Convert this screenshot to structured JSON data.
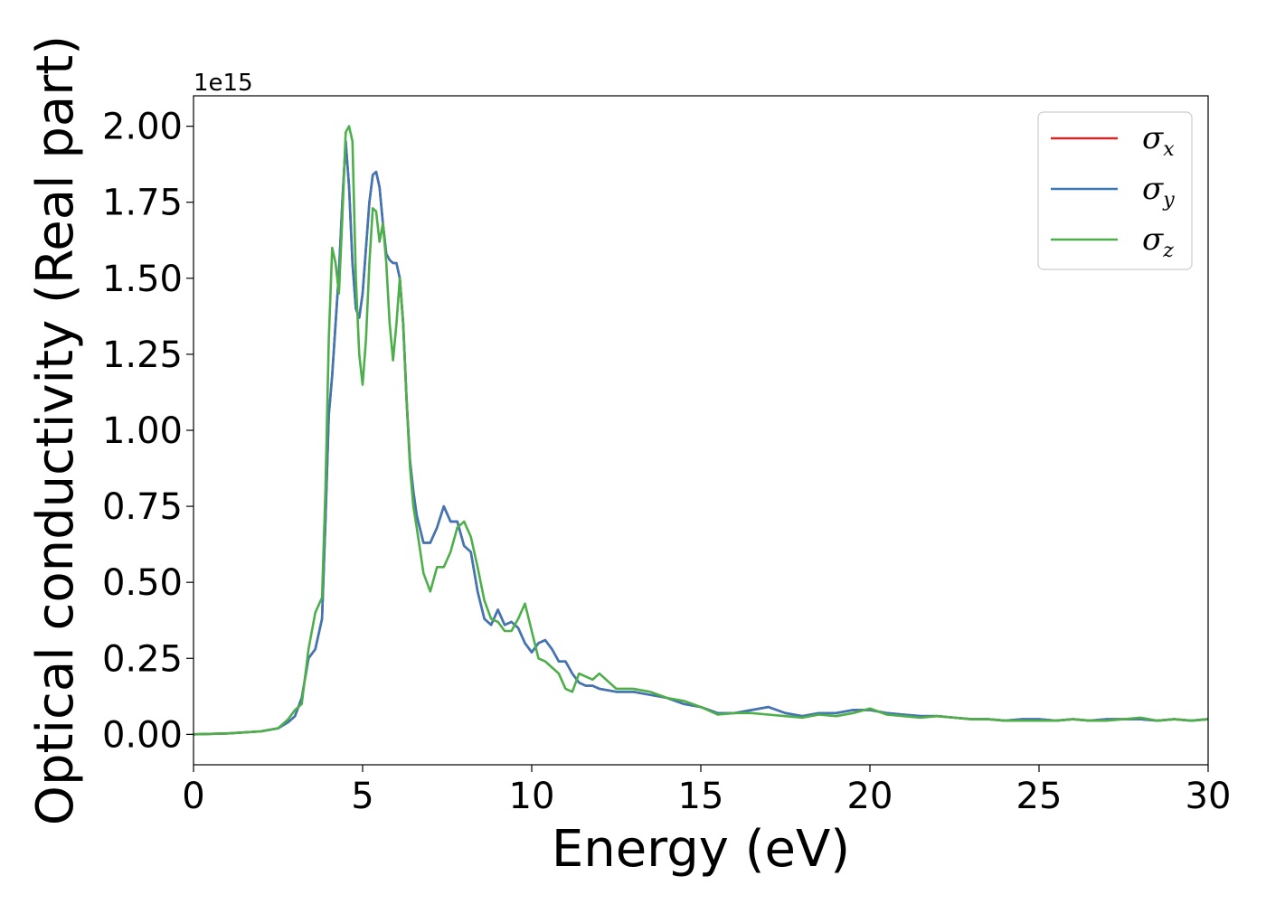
{
  "chart_data": {
    "type": "line",
    "xlabel": "Energy (eV)",
    "ylabel": "Optical conductivity (Real part)",
    "y_offset_label": "1e15",
    "xlim": [
      0,
      30
    ],
    "ylim": [
      -0.1,
      2.1
    ],
    "xticks": [
      0,
      5,
      10,
      15,
      20,
      25,
      30
    ],
    "xtick_labels": [
      "0",
      "5",
      "10",
      "15",
      "20",
      "25",
      "30"
    ],
    "yticks": [
      0.0,
      0.25,
      0.5,
      0.75,
      1.0,
      1.25,
      1.5,
      1.75,
      2.0
    ],
    "ytick_labels": [
      "0.00",
      "0.25",
      "0.50",
      "0.75",
      "1.00",
      "1.25",
      "1.50",
      "1.75",
      "2.00"
    ],
    "grid": false,
    "legend_position": "top-right",
    "series": [
      {
        "name": "σx",
        "name_base": "σ",
        "name_sub": "x",
        "color": "#d62728",
        "x": [
          0,
          1,
          2,
          2.5,
          2.8,
          3.0,
          3.2,
          3.4,
          3.6,
          3.8,
          3.9,
          4.0,
          4.1,
          4.2,
          4.3,
          4.4,
          4.5,
          4.6,
          4.7,
          4.8,
          4.9,
          5.0,
          5.1,
          5.2,
          5.3,
          5.4,
          5.5,
          5.6,
          5.7,
          5.8,
          5.9,
          6.0,
          6.1,
          6.2,
          6.3,
          6.4,
          6.5,
          6.6,
          6.8,
          7.0,
          7.2,
          7.4,
          7.6,
          7.8,
          8.0,
          8.2,
          8.4,
          8.6,
          8.8,
          9.0,
          9.2,
          9.4,
          9.6,
          9.8,
          10.0,
          10.2,
          10.4,
          10.6,
          10.8,
          11.0,
          11.2,
          11.4,
          11.6,
          11.8,
          12.0,
          12.5,
          13.0,
          13.5,
          14.0,
          14.5,
          15.0,
          15.5,
          16.0,
          16.5,
          17.0,
          17.5,
          18.0,
          18.5,
          19.0,
          19.5,
          20.0,
          20.5,
          21.0,
          21.5,
          22.0,
          22.5,
          23.0,
          23.5,
          24.0,
          24.5,
          25.0,
          25.5,
          26.0,
          26.5,
          27.0,
          27.5,
          28.0,
          28.5,
          29.0,
          29.5,
          30.0
        ],
        "y": [
          0.0,
          0.003,
          0.01,
          0.02,
          0.04,
          0.06,
          0.12,
          0.25,
          0.28,
          0.38,
          0.7,
          1.05,
          1.18,
          1.35,
          1.52,
          1.75,
          1.95,
          1.8,
          1.55,
          1.4,
          1.37,
          1.45,
          1.6,
          1.75,
          1.84,
          1.85,
          1.8,
          1.68,
          1.58,
          1.56,
          1.55,
          1.55,
          1.5,
          1.35,
          1.1,
          0.9,
          0.8,
          0.72,
          0.63,
          0.63,
          0.68,
          0.75,
          0.7,
          0.7,
          0.62,
          0.6,
          0.47,
          0.38,
          0.36,
          0.41,
          0.36,
          0.37,
          0.35,
          0.3,
          0.27,
          0.3,
          0.31,
          0.28,
          0.24,
          0.24,
          0.2,
          0.17,
          0.16,
          0.16,
          0.15,
          0.14,
          0.14,
          0.13,
          0.12,
          0.1,
          0.09,
          0.07,
          0.07,
          0.08,
          0.09,
          0.07,
          0.06,
          0.07,
          0.07,
          0.08,
          0.08,
          0.07,
          0.065,
          0.06,
          0.06,
          0.055,
          0.05,
          0.05,
          0.045,
          0.05,
          0.05,
          0.045,
          0.05,
          0.045,
          0.05,
          0.05,
          0.05,
          0.045,
          0.05,
          0.045,
          0.05
        ]
      },
      {
        "name": "σy",
        "name_base": "σ",
        "name_sub": "y",
        "color": "#3e77b5",
        "x": [
          0,
          1,
          2,
          2.5,
          2.8,
          3.0,
          3.2,
          3.4,
          3.6,
          3.8,
          3.9,
          4.0,
          4.1,
          4.2,
          4.3,
          4.4,
          4.5,
          4.6,
          4.7,
          4.8,
          4.9,
          5.0,
          5.1,
          5.2,
          5.3,
          5.4,
          5.5,
          5.6,
          5.7,
          5.8,
          5.9,
          6.0,
          6.1,
          6.2,
          6.3,
          6.4,
          6.5,
          6.6,
          6.8,
          7.0,
          7.2,
          7.4,
          7.6,
          7.8,
          8.0,
          8.2,
          8.4,
          8.6,
          8.8,
          9.0,
          9.2,
          9.4,
          9.6,
          9.8,
          10.0,
          10.2,
          10.4,
          10.6,
          10.8,
          11.0,
          11.2,
          11.4,
          11.6,
          11.8,
          12.0,
          12.5,
          13.0,
          13.5,
          14.0,
          14.5,
          15.0,
          15.5,
          16.0,
          16.5,
          17.0,
          17.5,
          18.0,
          18.5,
          19.0,
          19.5,
          20.0,
          20.5,
          21.0,
          21.5,
          22.0,
          22.5,
          23.0,
          23.5,
          24.0,
          24.5,
          25.0,
          25.5,
          26.0,
          26.5,
          27.0,
          27.5,
          28.0,
          28.5,
          29.0,
          29.5,
          30.0
        ],
        "y": [
          0.0,
          0.003,
          0.01,
          0.02,
          0.04,
          0.06,
          0.12,
          0.25,
          0.28,
          0.38,
          0.7,
          1.05,
          1.18,
          1.35,
          1.52,
          1.75,
          1.95,
          1.8,
          1.55,
          1.4,
          1.37,
          1.45,
          1.6,
          1.75,
          1.84,
          1.85,
          1.8,
          1.68,
          1.58,
          1.56,
          1.55,
          1.55,
          1.5,
          1.35,
          1.1,
          0.9,
          0.8,
          0.72,
          0.63,
          0.63,
          0.68,
          0.75,
          0.7,
          0.7,
          0.62,
          0.6,
          0.47,
          0.38,
          0.36,
          0.41,
          0.36,
          0.37,
          0.35,
          0.3,
          0.27,
          0.3,
          0.31,
          0.28,
          0.24,
          0.24,
          0.2,
          0.17,
          0.16,
          0.16,
          0.15,
          0.14,
          0.14,
          0.13,
          0.12,
          0.1,
          0.09,
          0.07,
          0.07,
          0.08,
          0.09,
          0.07,
          0.06,
          0.07,
          0.07,
          0.08,
          0.08,
          0.07,
          0.065,
          0.06,
          0.06,
          0.055,
          0.05,
          0.05,
          0.045,
          0.05,
          0.05,
          0.045,
          0.05,
          0.045,
          0.05,
          0.05,
          0.05,
          0.045,
          0.05,
          0.045,
          0.05
        ]
      },
      {
        "name": "σz",
        "name_base": "σ",
        "name_sub": "z",
        "color": "#4daf4a",
        "x": [
          0,
          1,
          2,
          2.5,
          2.8,
          3.0,
          3.2,
          3.4,
          3.6,
          3.8,
          3.9,
          4.0,
          4.1,
          4.2,
          4.3,
          4.4,
          4.5,
          4.6,
          4.7,
          4.8,
          4.9,
          5.0,
          5.1,
          5.2,
          5.3,
          5.4,
          5.5,
          5.6,
          5.7,
          5.8,
          5.9,
          6.0,
          6.1,
          6.2,
          6.3,
          6.4,
          6.5,
          6.6,
          6.8,
          7.0,
          7.2,
          7.4,
          7.6,
          7.8,
          8.0,
          8.2,
          8.4,
          8.6,
          8.8,
          9.0,
          9.2,
          9.4,
          9.6,
          9.8,
          10.0,
          10.2,
          10.4,
          10.6,
          10.8,
          11.0,
          11.2,
          11.4,
          11.6,
          11.8,
          12.0,
          12.5,
          13.0,
          13.5,
          14.0,
          14.5,
          15.0,
          15.5,
          16.0,
          16.5,
          17.0,
          17.5,
          18.0,
          18.5,
          19.0,
          19.5,
          20.0,
          20.5,
          21.0,
          21.5,
          22.0,
          22.5,
          23.0,
          23.5,
          24.0,
          24.5,
          25.0,
          25.5,
          26.0,
          26.5,
          27.0,
          27.5,
          28.0,
          28.5,
          29.0,
          29.5,
          30.0
        ],
        "y": [
          0.0,
          0.003,
          0.01,
          0.02,
          0.05,
          0.08,
          0.1,
          0.28,
          0.4,
          0.45,
          0.8,
          1.3,
          1.6,
          1.55,
          1.45,
          1.7,
          1.98,
          2.0,
          1.95,
          1.5,
          1.25,
          1.15,
          1.3,
          1.55,
          1.73,
          1.72,
          1.62,
          1.68,
          1.55,
          1.35,
          1.23,
          1.35,
          1.5,
          1.35,
          1.1,
          0.88,
          0.75,
          0.68,
          0.53,
          0.47,
          0.55,
          0.55,
          0.6,
          0.68,
          0.7,
          0.65,
          0.55,
          0.44,
          0.38,
          0.37,
          0.34,
          0.34,
          0.38,
          0.43,
          0.34,
          0.25,
          0.24,
          0.22,
          0.2,
          0.15,
          0.14,
          0.2,
          0.19,
          0.18,
          0.2,
          0.15,
          0.15,
          0.14,
          0.12,
          0.11,
          0.09,
          0.065,
          0.07,
          0.07,
          0.065,
          0.06,
          0.055,
          0.065,
          0.06,
          0.07,
          0.085,
          0.065,
          0.06,
          0.055,
          0.06,
          0.055,
          0.05,
          0.05,
          0.045,
          0.045,
          0.045,
          0.045,
          0.05,
          0.045,
          0.045,
          0.05,
          0.055,
          0.045,
          0.05,
          0.045,
          0.05
        ]
      }
    ]
  }
}
